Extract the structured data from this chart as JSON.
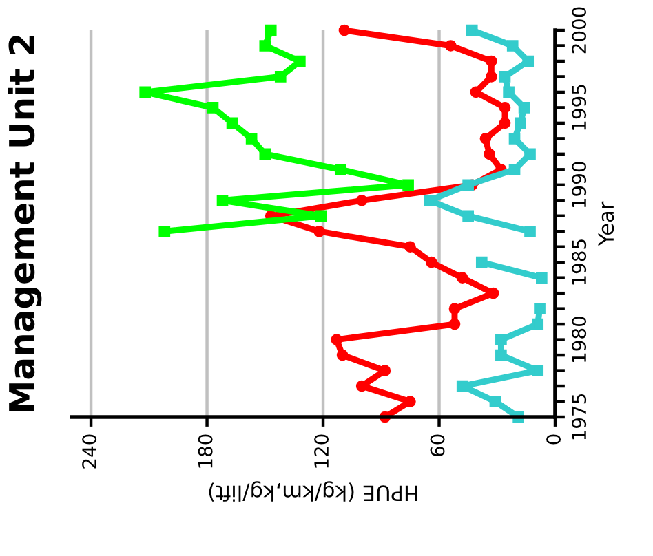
{
  "chart_data": {
    "type": "line",
    "orientation": "horizontal",
    "title": "Management Unit 2",
    "ylabel": "Year",
    "xlabel": "HPUE (kg/km,kg/lift)",
    "x": [
      1975,
      1976,
      1977,
      1978,
      1979,
      1980,
      1981,
      1982,
      1983,
      1984,
      1985,
      1986,
      1987,
      1988,
      1989,
      1990,
      1991,
      1992,
      1993,
      1994,
      1995,
      1996,
      1997,
      1998,
      1999,
      2000
    ],
    "series": [
      {
        "color": "#ff0000",
        "marker": "circle",
        "values": [
          88,
          75,
          100,
          88,
          110,
          113,
          52,
          52,
          32,
          48,
          64,
          75,
          122,
          147,
          100,
          43,
          28,
          34,
          36,
          26,
          26,
          41,
          33,
          33,
          54,
          109
        ]
      },
      {
        "color": "#00ff00",
        "marker": "square",
        "values": [
          null,
          null,
          null,
          null,
          null,
          null,
          null,
          null,
          null,
          null,
          null,
          null,
          202,
          121,
          172,
          76,
          111,
          150,
          157,
          167,
          177,
          212,
          142,
          132,
          150,
          147
        ]
      },
      {
        "color": "#33cccc",
        "marker": "square",
        "values": [
          19,
          31,
          48,
          9,
          28,
          28,
          9,
          8,
          null,
          7,
          38,
          null,
          13,
          45,
          65,
          45,
          21,
          13,
          21,
          18,
          16,
          24,
          26,
          14,
          22,
          43
        ]
      }
    ],
    "ylim": [
      1975,
      2000
    ],
    "yticks": [
      1975,
      {
        "value": 1976,
        "label": null
      },
      {
        "value": 1977,
        "label": null
      },
      {
        "value": 1978,
        "label": null
      },
      {
        "value": 1979,
        "label": null
      },
      1980,
      {
        "value": 1981,
        "label": null
      },
      {
        "value": 1982,
        "label": null
      },
      {
        "value": 1983,
        "label": null
      },
      {
        "value": 1984,
        "label": null
      },
      1985,
      {
        "value": 1986,
        "label": null
      },
      {
        "value": 1987,
        "label": null
      },
      {
        "value": 1988,
        "label": null
      },
      {
        "value": 1989,
        "label": null
      },
      1990,
      {
        "value": 1991,
        "label": null
      },
      {
        "value": 1992,
        "label": null
      },
      {
        "value": 1993,
        "label": null
      },
      {
        "value": 1994,
        "label": null
      },
      1995,
      {
        "value": 1996,
        "label": null
      },
      {
        "value": 1997,
        "label": null
      },
      {
        "value": 1998,
        "label": null
      },
      {
        "value": 1999,
        "label": null
      },
      2000
    ],
    "xlim": [
      250,
      0
    ],
    "xticks": [
      240,
      180,
      120,
      60,
      0
    ],
    "grid": "x",
    "line_style": "solid",
    "legend": false
  }
}
